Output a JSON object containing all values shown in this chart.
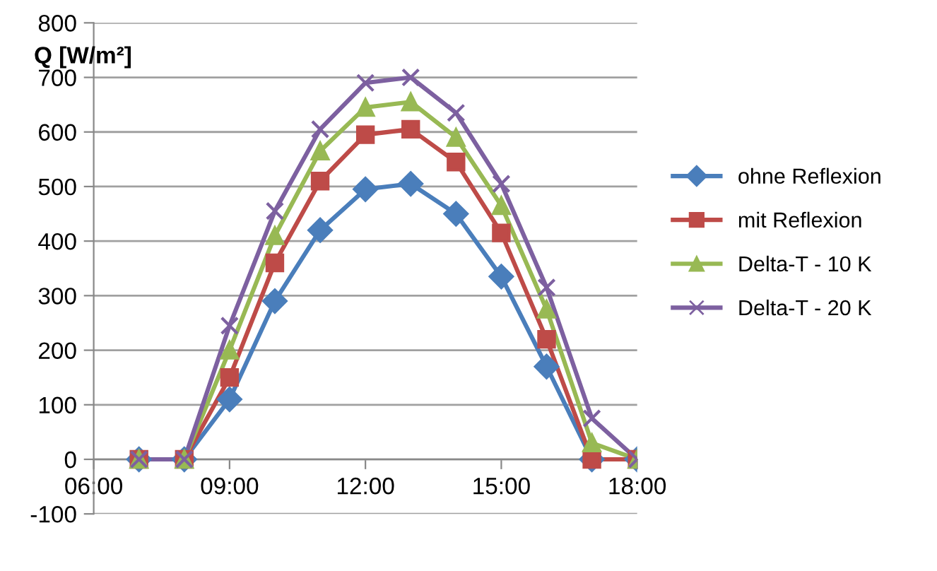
{
  "chart_data": {
    "type": "line",
    "ylabel": "Q [W/m²]",
    "x": [
      7,
      8,
      9,
      10,
      11,
      12,
      13,
      14,
      15,
      16,
      17,
      18
    ],
    "series": [
      {
        "name": "ohne Reflexion",
        "color": "#4a7ebb",
        "marker": "diamond",
        "values": [
          0,
          0,
          110,
          290,
          420,
          495,
          505,
          450,
          335,
          170,
          0,
          0
        ]
      },
      {
        "name": "mit Reflexion",
        "color": "#be4b48",
        "marker": "square",
        "values": [
          0,
          0,
          150,
          360,
          510,
          595,
          605,
          545,
          415,
          220,
          0,
          0
        ]
      },
      {
        "name": "Delta-T - 10 K",
        "color": "#98b954",
        "marker": "triangle",
        "values": [
          0,
          0,
          200,
          410,
          565,
          645,
          655,
          590,
          465,
          275,
          30,
          0
        ]
      },
      {
        "name": "Delta-T - 20 K",
        "color": "#7d60a0",
        "marker": "cross",
        "values": [
          0,
          0,
          245,
          455,
          605,
          690,
          700,
          635,
          505,
          315,
          75,
          0
        ]
      }
    ],
    "xlim": [
      6,
      18
    ],
    "xticks": [
      {
        "value": 6,
        "label": "06:00"
      },
      {
        "value": 9,
        "label": "09:00"
      },
      {
        "value": 12,
        "label": "12:00"
      },
      {
        "value": 15,
        "label": "15:00"
      },
      {
        "value": 18,
        "label": "18:00"
      }
    ],
    "ylim": [
      -100,
      800
    ],
    "yticks": [
      -100,
      0,
      100,
      200,
      300,
      400,
      500,
      600,
      700,
      800
    ],
    "grid": "y",
    "legend": "right",
    "line_style": "solid"
  }
}
